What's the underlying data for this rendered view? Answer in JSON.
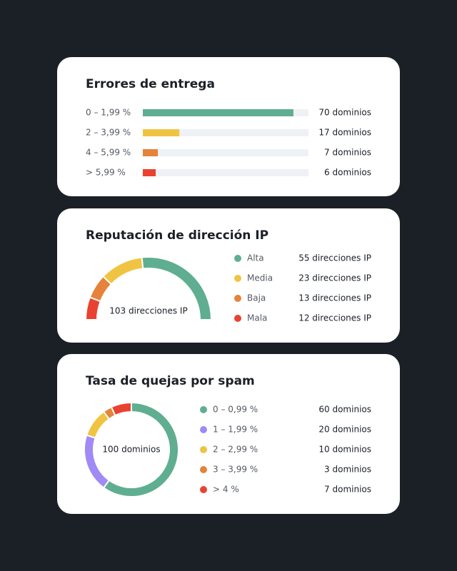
{
  "chart_data": [
    {
      "type": "bar",
      "title": "Errores de entrega",
      "categories": [
        "0 – 1,99 %",
        "2 – 3,99 %",
        "4 – 5,99 %",
        "> 5,99 %"
      ],
      "values": [
        70,
        17,
        7,
        6
      ],
      "value_labels": [
        "70 dominios",
        "17 dominios",
        "7 dominios",
        "6 dominios"
      ],
      "colors": [
        "#5fae91",
        "#f0c442",
        "#e5833a",
        "#ea4230"
      ],
      "xlim": [
        0,
        77
      ]
    },
    {
      "type": "half-donut",
      "title": "Reputación de dirección IP",
      "center_label": "103 direcciones IP",
      "categories": [
        "Alta",
        "Media",
        "Baja",
        "Mala"
      ],
      "values": [
        55,
        23,
        13,
        12
      ],
      "value_labels": [
        "55 direcciones IP",
        "23 direcciones IP",
        "13 direcciones IP",
        "12 direcciones IP"
      ],
      "colors": [
        "#5fae91",
        "#f0c442",
        "#e5833a",
        "#ea4230"
      ]
    },
    {
      "type": "donut",
      "title": "Tasa de quejas por spam",
      "center_label": "100 dominios",
      "categories": [
        "0 – 0,99 %",
        "1 – 1,99 %",
        "2 – 2,99 %",
        "3 – 3,99 %",
        "> 4 %"
      ],
      "values": [
        60,
        20,
        10,
        3,
        7
      ],
      "value_labels": [
        "60 dominios",
        "20 dominios",
        "10 dominios",
        "3 dominios",
        "7 dominios"
      ],
      "colors": [
        "#5fae91",
        "#a08af5",
        "#f0c442",
        "#e5833a",
        "#ea4230"
      ]
    }
  ]
}
